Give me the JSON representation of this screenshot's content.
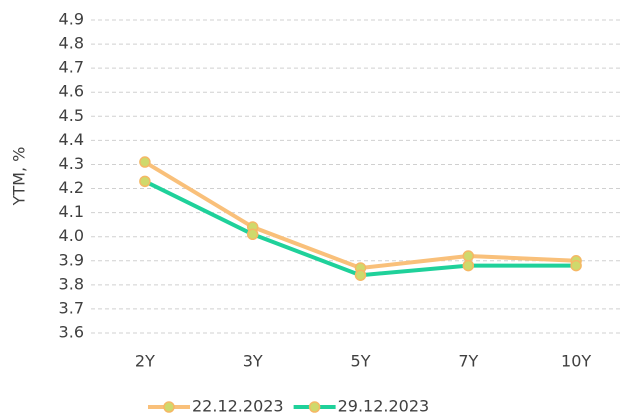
{
  "chart_data": {
    "type": "line",
    "y_label": "YTM, %",
    "categories": [
      "2Y",
      "3Y",
      "5Y",
      "7Y",
      "10Y"
    ],
    "series": [
      {
        "name": "22.12.2023",
        "color": "#f9c07a",
        "values": [
          4.31,
          4.04,
          3.87,
          3.92,
          3.9
        ]
      },
      {
        "name": "29.12.2023",
        "color": "#1fd19a",
        "values": [
          4.23,
          4.01,
          3.84,
          3.88,
          3.88
        ]
      }
    ],
    "marker_fill": "#cfd96c",
    "marker_stroke": "#f5b865",
    "ylim": [
      3.6,
      4.9
    ],
    "yticks": [
      3.6,
      3.7,
      3.8,
      3.9,
      {
        "value": 4,
        "label": "4.0"
      },
      4.1,
      4.2,
      4.3,
      4.4,
      4.5,
      4.6,
      4.7,
      4.8,
      4.9
    ],
    "grid": true,
    "legend": "bottom"
  }
}
